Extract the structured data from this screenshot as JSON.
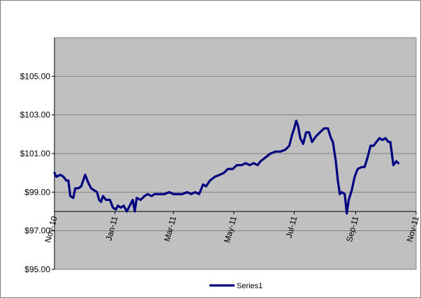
{
  "chart_data": {
    "type": "line",
    "title": "",
    "xlabel": "",
    "ylabel": "",
    "ylim": [
      95,
      107
    ],
    "x_range": [
      "2010-11-01",
      "2011-11-01"
    ],
    "x_labels": [
      {
        "label": "Nov-10",
        "date": "2010-11-01"
      },
      {
        "label": "Jan-11",
        "date": "2011-01-01"
      },
      {
        "label": "Mar-11",
        "date": "2011-03-01"
      },
      {
        "label": "May-11",
        "date": "2011-05-01"
      },
      {
        "label": "Jul-11",
        "date": "2011-07-01"
      },
      {
        "label": "Sep-11",
        "date": "2011-09-01"
      },
      {
        "label": "Nov-11",
        "date": "2011-11-01"
      }
    ],
    "y_ticks": [
      {
        "label": "$95.00",
        "value": 95
      },
      {
        "label": "$97.00",
        "value": 97
      },
      {
        "label": "$99.00",
        "value": 99
      },
      {
        "label": "$101.00",
        "value": 101
      },
      {
        "label": "$103.00",
        "value": 103
      },
      {
        "label": "$105.00",
        "value": 105
      }
    ],
    "grid": "horizontal",
    "x_axis_crosses_at": 98,
    "legend_position": "bottom",
    "background_color": "#c0c0c0",
    "series": [
      {
        "name": "Series1",
        "color": "#000080",
        "points": [
          [
            "2010-11-01",
            100.0
          ],
          [
            "2010-11-03",
            99.8
          ],
          [
            "2010-11-07",
            99.9
          ],
          [
            "2010-11-10",
            99.8
          ],
          [
            "2010-11-13",
            99.6
          ],
          [
            "2010-11-15",
            99.6
          ],
          [
            "2010-11-17",
            98.8
          ],
          [
            "2010-11-20",
            98.7
          ],
          [
            "2010-11-22",
            99.2
          ],
          [
            "2010-11-25",
            99.2
          ],
          [
            "2010-11-28",
            99.3
          ],
          [
            "2010-12-02",
            99.9
          ],
          [
            "2010-12-05",
            99.5
          ],
          [
            "2010-12-08",
            99.2
          ],
          [
            "2010-12-11",
            99.1
          ],
          [
            "2010-12-14",
            99.0
          ],
          [
            "2010-12-16",
            98.6
          ],
          [
            "2010-12-18",
            98.5
          ],
          [
            "2010-12-20",
            98.8
          ],
          [
            "2010-12-23",
            98.6
          ],
          [
            "2010-12-27",
            98.6
          ],
          [
            "2010-12-30",
            98.2
          ],
          [
            "2011-01-02",
            98.1
          ],
          [
            "2011-01-04",
            98.3
          ],
          [
            "2011-01-07",
            98.2
          ],
          [
            "2011-01-10",
            98.3
          ],
          [
            "2011-01-13",
            98.0
          ],
          [
            "2011-01-16",
            98.3
          ],
          [
            "2011-01-19",
            98.6
          ],
          [
            "2011-01-21",
            98.0
          ],
          [
            "2011-01-23",
            98.7
          ],
          [
            "2011-01-27",
            98.6
          ],
          [
            "2011-01-31",
            98.8
          ],
          [
            "2011-02-03",
            98.9
          ],
          [
            "2011-02-07",
            98.8
          ],
          [
            "2011-02-10",
            98.9
          ],
          [
            "2011-02-15",
            98.9
          ],
          [
            "2011-02-20",
            98.9
          ],
          [
            "2011-02-25",
            99.0
          ],
          [
            "2011-03-01",
            98.9
          ],
          [
            "2011-03-05",
            98.9
          ],
          [
            "2011-03-10",
            98.9
          ],
          [
            "2011-03-15",
            99.0
          ],
          [
            "2011-03-19",
            98.9
          ],
          [
            "2011-03-23",
            99.0
          ],
          [
            "2011-03-27",
            98.9
          ],
          [
            "2011-03-31",
            99.4
          ],
          [
            "2011-04-03",
            99.3
          ],
          [
            "2011-04-07",
            99.6
          ],
          [
            "2011-04-12",
            99.8
          ],
          [
            "2011-04-17",
            99.9
          ],
          [
            "2011-04-21",
            100.0
          ],
          [
            "2011-04-25",
            100.2
          ],
          [
            "2011-04-30",
            100.2
          ],
          [
            "2011-05-04",
            100.4
          ],
          [
            "2011-05-09",
            100.4
          ],
          [
            "2011-05-13",
            100.5
          ],
          [
            "2011-05-17",
            100.4
          ],
          [
            "2011-05-21",
            100.5
          ],
          [
            "2011-05-25",
            100.4
          ],
          [
            "2011-05-28",
            100.6
          ],
          [
            "2011-06-02",
            100.8
          ],
          [
            "2011-06-07",
            101.0
          ],
          [
            "2011-06-12",
            101.1
          ],
          [
            "2011-06-17",
            101.1
          ],
          [
            "2011-06-22",
            101.2
          ],
          [
            "2011-06-26",
            101.4
          ],
          [
            "2011-06-29",
            102.0
          ],
          [
            "2011-07-01",
            102.3
          ],
          [
            "2011-07-03",
            102.7
          ],
          [
            "2011-07-05",
            102.4
          ],
          [
            "2011-07-07",
            101.8
          ],
          [
            "2011-07-10",
            101.5
          ],
          [
            "2011-07-13",
            102.1
          ],
          [
            "2011-07-16",
            102.1
          ],
          [
            "2011-07-19",
            101.6
          ],
          [
            "2011-07-23",
            101.9
          ],
          [
            "2011-07-27",
            102.1
          ],
          [
            "2011-07-31",
            102.3
          ],
          [
            "2011-08-04",
            102.3
          ],
          [
            "2011-08-07",
            101.8
          ],
          [
            "2011-08-09",
            101.6
          ],
          [
            "2011-08-12",
            100.6
          ],
          [
            "2011-08-14",
            99.6
          ],
          [
            "2011-08-16",
            98.9
          ],
          [
            "2011-08-18",
            99.0
          ],
          [
            "2011-08-21",
            98.9
          ],
          [
            "2011-08-23",
            97.9
          ],
          [
            "2011-08-25",
            98.6
          ],
          [
            "2011-08-28",
            99.1
          ],
          [
            "2011-08-31",
            99.8
          ],
          [
            "2011-09-03",
            100.2
          ],
          [
            "2011-09-07",
            100.3
          ],
          [
            "2011-09-10",
            100.3
          ],
          [
            "2011-09-13",
            100.8
          ],
          [
            "2011-09-16",
            101.4
          ],
          [
            "2011-09-19",
            101.4
          ],
          [
            "2011-09-22",
            101.6
          ],
          [
            "2011-09-25",
            101.8
          ],
          [
            "2011-09-28",
            101.7
          ],
          [
            "2011-10-01",
            101.8
          ],
          [
            "2011-10-04",
            101.6
          ],
          [
            "2011-10-06",
            101.6
          ],
          [
            "2011-10-09",
            100.4
          ],
          [
            "2011-10-12",
            100.6
          ],
          [
            "2011-10-14",
            100.5
          ]
        ]
      }
    ]
  }
}
